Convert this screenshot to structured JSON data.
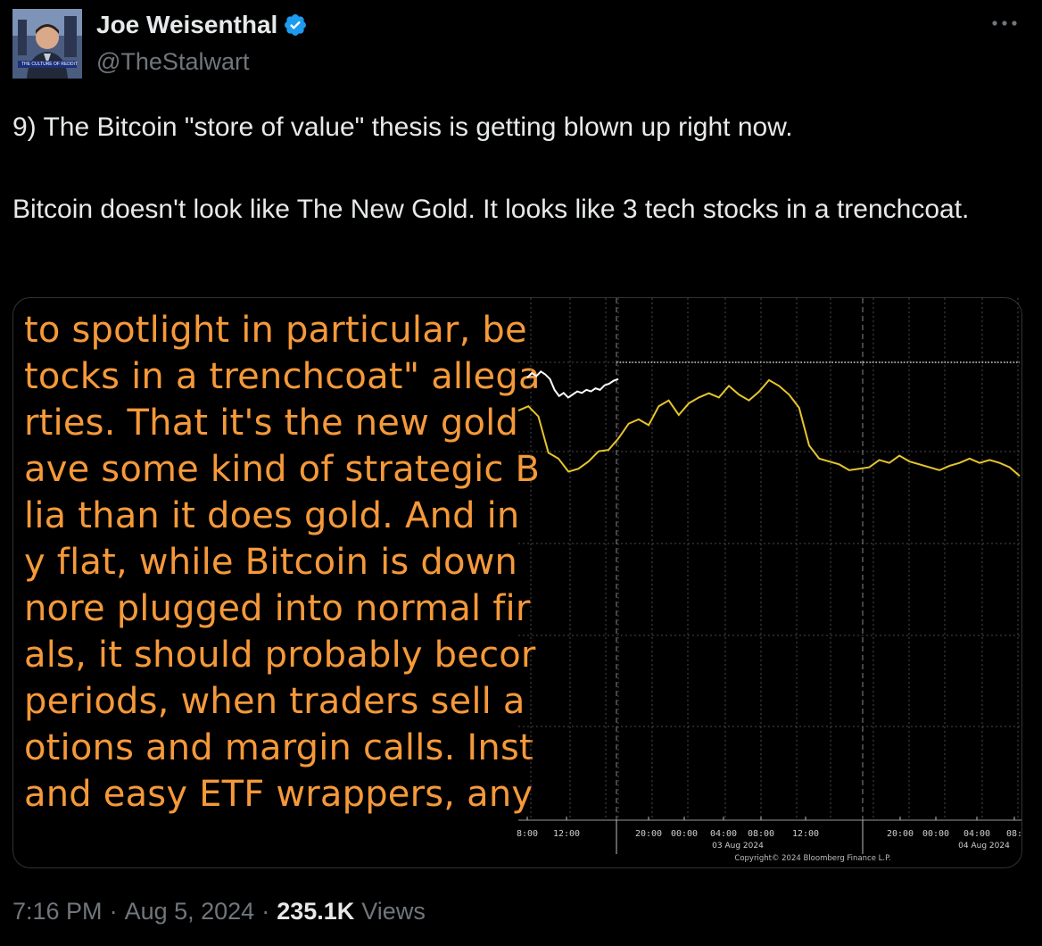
{
  "author": {
    "name": "Joe Weisenthal",
    "handle": "@TheStalwart",
    "avatar_caption": "THE CULTURE OF REDDIT"
  },
  "tweet": {
    "paragraph_1": "9) The Bitcoin \"store of value\" thesis is getting blown up right now.",
    "paragraph_2": "Bitcoin doesn't look like The New Gold. It looks like 3 tech stocks in a trenchcoat."
  },
  "image_text_lines": [
    "to spotlight in particular, be",
    "tocks in a trenchcoat\" allega",
    "rties. That it's the new gold",
    "ave some kind of strategic B",
    "lia than it does gold. And in",
    "y flat, while Bitcoin is down",
    "nore plugged into normal fir",
    "als, it should probably becor",
    " periods, when traders sell a",
    "otions and margin calls. Inst",
    " and easy ETF wrappers, any"
  ],
  "chart_data": {
    "type": "line",
    "title": "",
    "x_tick_labels": [
      "8:00",
      "12:00",
      "20:00",
      "00:00",
      "04:00",
      "08:00",
      "12:00",
      "20:00",
      "00:00",
      "04:00",
      "08:"
    ],
    "date_labels": [
      "03 Aug 2024",
      "04 Aug 2024"
    ],
    "copyright": "Copyright© 2024 Bloomberg Finance L.P.",
    "series": [
      {
        "name": "white",
        "color": "#ffffff",
        "x": [
          0,
          1,
          2,
          3,
          4,
          5,
          6,
          7,
          8,
          9,
          10,
          11,
          12,
          13,
          14,
          15,
          16,
          17,
          18,
          19,
          20
        ],
        "values": [
          88,
          91,
          89,
          92,
          90,
          87,
          80,
          76,
          78,
          75,
          77,
          79,
          78,
          80,
          79,
          81,
          80,
          83,
          84,
          86,
          87
        ]
      },
      {
        "name": "yellow",
        "color": "#e6c52e",
        "x": [
          0,
          2,
          4,
          6,
          8,
          10,
          12,
          14,
          16,
          18,
          20,
          22,
          24,
          26,
          28,
          30,
          32,
          34,
          36,
          38,
          40,
          42,
          44,
          46,
          48,
          50,
          52,
          54,
          56,
          58,
          60,
          62,
          64,
          66,
          68,
          70,
          72,
          74,
          76,
          78,
          80,
          82,
          84,
          86,
          88,
          90,
          92,
          94,
          96,
          98,
          100
        ],
        "values": [
          81,
          84,
          77,
          52,
          48,
          39,
          41,
          46,
          53,
          54,
          62,
          72,
          75,
          71,
          84,
          88,
          78,
          86,
          90,
          93,
          90,
          98,
          92,
          88,
          94,
          102,
          98,
          92,
          83,
          57,
          48,
          46,
          44,
          40,
          41,
          42,
          47,
          45,
          50,
          46,
          44,
          42,
          40,
          43,
          45,
          48,
          45,
          47,
          45,
          42,
          36
        ]
      }
    ],
    "ylim": [
      0,
      140
    ],
    "grid": true
  }
}
